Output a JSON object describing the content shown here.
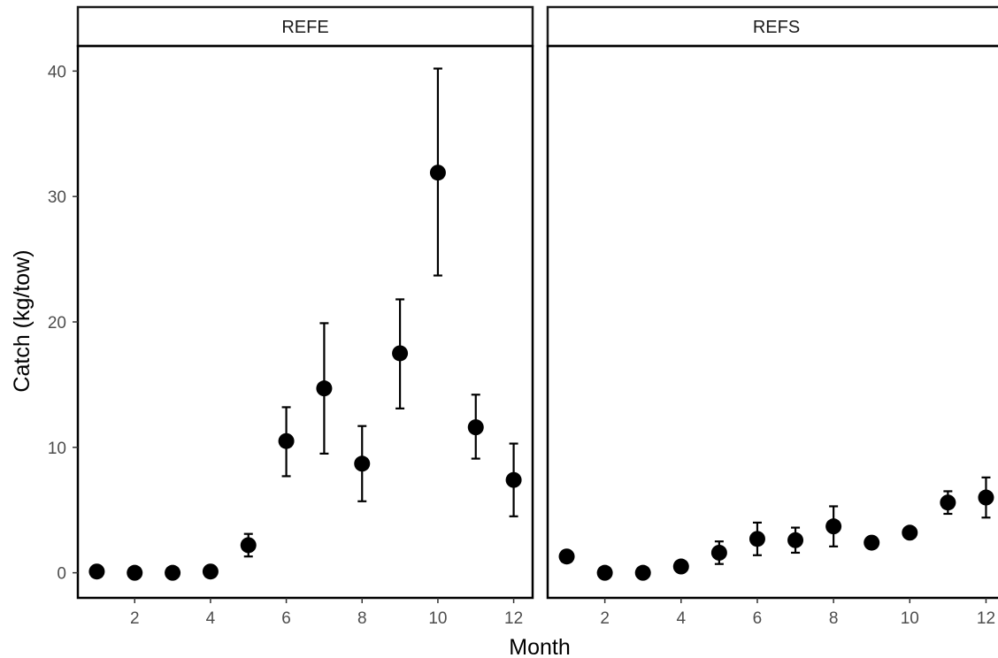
{
  "chart_data": {
    "type": "scatter",
    "xlabel": "Month",
    "ylabel": "Catch (kg/tow)",
    "xlim": [
      0.5,
      12.5
    ],
    "ylim": [
      -2,
      42
    ],
    "x_ticks": [
      2,
      4,
      6,
      8,
      10,
      12
    ],
    "y_ticks": [
      0,
      10,
      20,
      30,
      40
    ],
    "grid": false,
    "error_bars": true,
    "panels": [
      {
        "name": "REFE",
        "x": [
          1,
          2,
          3,
          4,
          5,
          6,
          7,
          8,
          9,
          10,
          11,
          12
        ],
        "values": [
          0.1,
          0.0,
          0.0,
          0.1,
          2.2,
          10.5,
          14.7,
          8.7,
          17.5,
          31.9,
          11.6,
          7.4
        ],
        "lower": [
          null,
          null,
          null,
          null,
          1.3,
          7.7,
          9.5,
          5.7,
          13.1,
          23.7,
          9.1,
          4.5
        ],
        "upper": [
          null,
          null,
          null,
          null,
          3.1,
          13.2,
          19.9,
          11.7,
          21.8,
          40.2,
          14.2,
          10.3
        ]
      },
      {
        "name": "REFS",
        "x": [
          1,
          2,
          3,
          4,
          5,
          6,
          7,
          8,
          9,
          10,
          11,
          12
        ],
        "values": [
          1.3,
          0.0,
          0.0,
          0.5,
          1.6,
          2.7,
          2.6,
          3.7,
          2.4,
          3.2,
          5.6,
          6.0
        ],
        "lower": [
          null,
          null,
          null,
          null,
          0.7,
          1.4,
          1.6,
          2.1,
          null,
          null,
          4.7,
          4.4
        ],
        "upper": [
          null,
          null,
          null,
          null,
          2.5,
          4.0,
          3.6,
          5.3,
          null,
          null,
          6.5,
          7.6
        ]
      }
    ]
  }
}
